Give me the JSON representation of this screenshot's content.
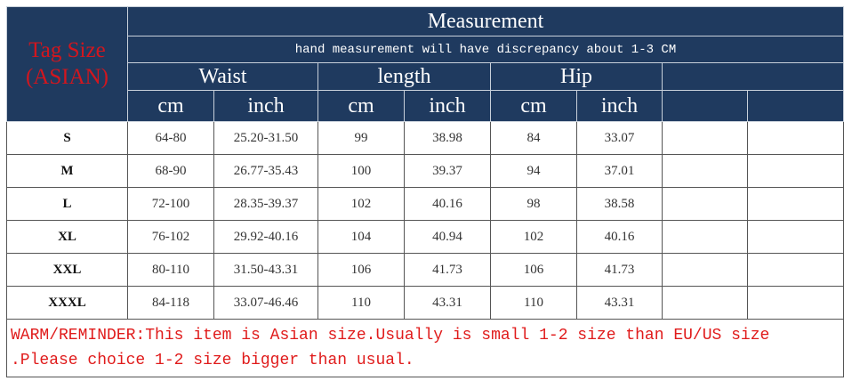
{
  "header": {
    "tag_size": "Tag Size",
    "tag_region": "(ASIAN)",
    "title": "Measurement",
    "note": "hand measurement will have discrepancy about 1-3 CM",
    "groups": [
      "Waist",
      "length",
      "Hip"
    ],
    "units": [
      "cm",
      "inch",
      "cm",
      "inch",
      "cm",
      "inch"
    ]
  },
  "rows": [
    {
      "size": "S",
      "waist_cm": "64-80",
      "waist_in": "25.20-31.50",
      "length_cm": "99",
      "length_in": "38.98",
      "hip_cm": "84",
      "hip_in": "33.07"
    },
    {
      "size": "M",
      "waist_cm": "68-90",
      "waist_in": "26.77-35.43",
      "length_cm": "100",
      "length_in": "39.37",
      "hip_cm": "94",
      "hip_in": "37.01"
    },
    {
      "size": "L",
      "waist_cm": "72-100",
      "waist_in": "28.35-39.37",
      "length_cm": "102",
      "length_in": "40.16",
      "hip_cm": "98",
      "hip_in": "38.58"
    },
    {
      "size": "XL",
      "waist_cm": "76-102",
      "waist_in": "29.92-40.16",
      "length_cm": "104",
      "length_in": "40.94",
      "hip_cm": "102",
      "hip_in": "40.16"
    },
    {
      "size": "XXL",
      "waist_cm": "80-110",
      "waist_in": "31.50-43.31",
      "length_cm": "106",
      "length_in": "41.73",
      "hip_cm": "106",
      "hip_in": "41.73"
    },
    {
      "size": "XXXL",
      "waist_cm": "84-118",
      "waist_in": "33.07-46.46",
      "length_cm": "110",
      "length_in": "43.31",
      "hip_cm": "110",
      "hip_in": "43.31"
    }
  ],
  "reminder": "WARM/REMINDER:This item is Asian size.Usually is small 1-2 size than EU/US size .Please choice 1-2 size bigger than usual.",
  "colors": {
    "header_bg": "#1f3a5f",
    "accent_red": "#d2161e"
  }
}
